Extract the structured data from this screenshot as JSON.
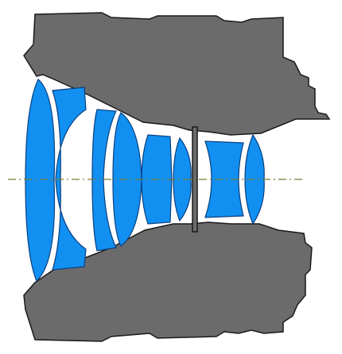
{
  "diagram": {
    "kind": "lens-cross-section",
    "element_count": 9,
    "elements": [
      {
        "id": 1,
        "shape": "biconvex"
      },
      {
        "id": 2,
        "shape": "negative-meniscus"
      },
      {
        "id": 3,
        "shape": "negative-meniscus"
      },
      {
        "id": 4,
        "shape": "positive-meniscus"
      },
      {
        "id": 5,
        "shape": "biconvex"
      },
      {
        "id": 6,
        "shape": "biconvex"
      },
      {
        "id": 7,
        "shape": "aperture-stop"
      },
      {
        "id": 8,
        "shape": "biconcave"
      },
      {
        "id": 9,
        "shape": "biconvex"
      }
    ],
    "colors": {
      "background": "#ffffff",
      "housing": "#6b6b6b",
      "housing_outline": "#1a1a1a",
      "glass": "#1190f2",
      "glass_outline": "#0a3f80",
      "optical_axis": "#7a7a3a"
    }
  }
}
